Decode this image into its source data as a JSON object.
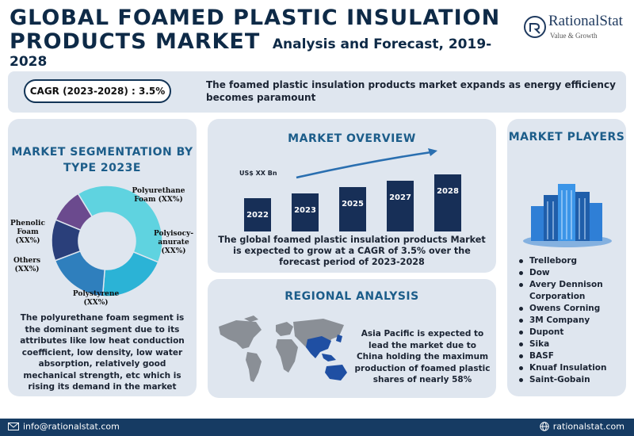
{
  "header": {
    "title_line1": "GLOBAL FOAMED PLASTIC INSULATION",
    "title_line2": "PRODUCTS MARKET",
    "subtitle": "Analysis and Forecast, 2019-2028"
  },
  "logo": {
    "name": "RationalStat",
    "tagline": "Value & Growth"
  },
  "banner": {
    "cagr": "CAGR (2023-2028) : 3.5%",
    "text": "The foamed plastic insulation products market expands as energy efficiency becomes paramount"
  },
  "segmentation": {
    "title": "MARKET SEGMENTATION BY TYPE 2023E",
    "labels": {
      "polyurethane": "Polyurethane Foam (XX%)",
      "polyisocyanurate": "Polyisocy-anurate (XX%)",
      "polystyrene": "Polystyrene (XX%)",
      "others": "Others (XX%)",
      "phenolic": "Phenolic Foam (XX%)"
    },
    "colors": {
      "polyurethane": "#5fd3e0",
      "polyisocyanurate": "#2bb3d6",
      "polystyrene": "#2f7fbd",
      "others": "#2a3f7a",
      "phenolic": "#6b4a8e"
    },
    "text": "The polyurethane foam segment is the dominant segment due to its attributes like low heat conduction coefficient, low density, low water absorption, relatively good mechanical strength, etc which is rising its demand in the market"
  },
  "overview": {
    "title": "MARKET OVERVIEW",
    "unit": "US$ XX Bn",
    "years": [
      "2022",
      "2023",
      "2025",
      "2027",
      "2028"
    ],
    "text": "The global foamed plastic insulation products Market is expected to grow at a CAGR of 3.5% over the forecast period of 2023-2028"
  },
  "regional": {
    "title": "REGIONAL ANALYSIS",
    "text": "Asia Pacific is expected to lead the market due to China holding the maximum production of foamed plastic shares of nearly 58%"
  },
  "players": {
    "title": "MARKET PLAYERS",
    "list": [
      "Trelleborg",
      "Dow",
      "Avery Dennison Corporation",
      "Owens Corning",
      "3M Company",
      "Dupont",
      "Sika",
      "BASF",
      "Knuaf Insulation",
      "Saint-Gobain"
    ]
  },
  "footer": {
    "email": "info@rationalstat.com",
    "website": "rationalstat.com"
  }
}
